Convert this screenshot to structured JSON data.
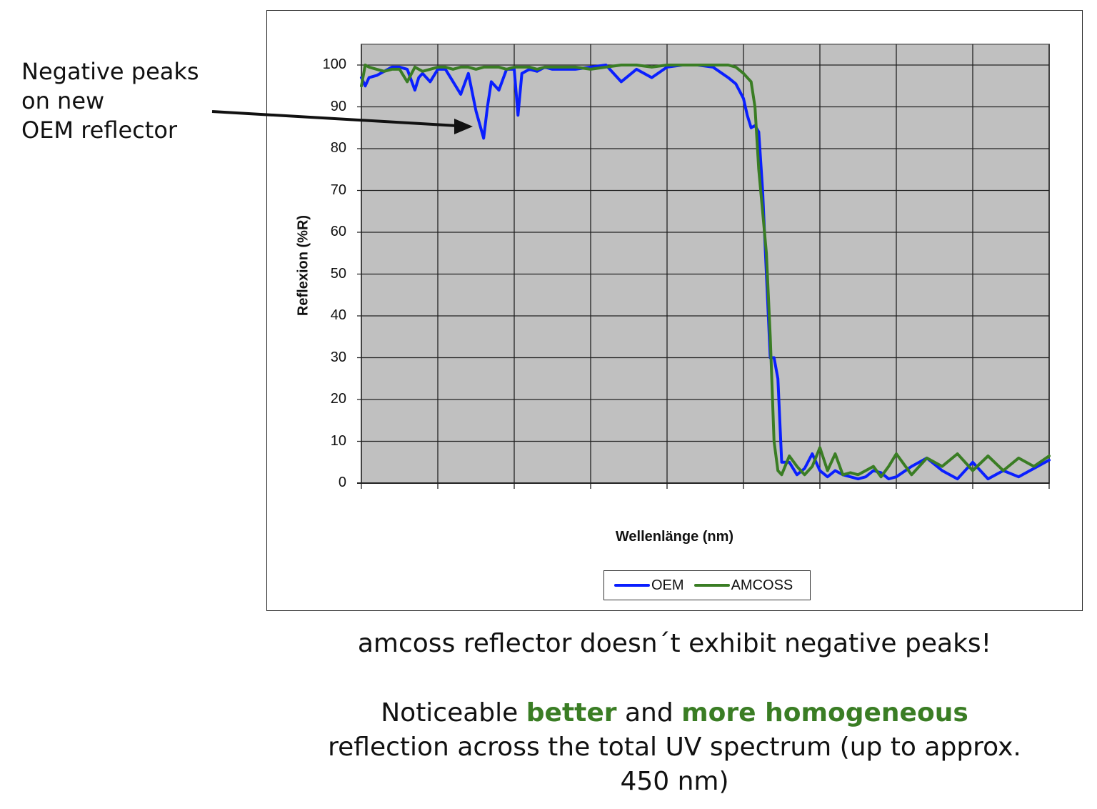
{
  "annotation": {
    "lines": [
      "Negative peaks",
      "on new",
      "OEM reflector"
    ]
  },
  "captions": {
    "line1": "amcoss reflector doesn´t exhibit negative peaks!",
    "line2_pre": "Noticeable ",
    "line2_hl1": "better",
    "line2_mid": " and ",
    "line2_hl2": "more homogeneous",
    "line3": "reflection across the total UV spectrum (up to approx. 450 nm)"
  },
  "colors": {
    "oem": "#0a1fff",
    "amcoss": "#3a7d24",
    "plot_bg": "#c0c0c0",
    "grid": "#222222",
    "highlight": "#3a7d24"
  },
  "chart_data": {
    "type": "line",
    "title": "",
    "xlabel": "Wellenlänge (nm)",
    "ylabel": "Reflexion (%R)",
    "ylim": [
      0,
      100
    ],
    "yticks": [
      0,
      10,
      20,
      30,
      40,
      50,
      60,
      70,
      80,
      90,
      100
    ],
    "xlim": [
      0,
      9
    ],
    "x_grid_divisions": 9,
    "x_tick_labels": [],
    "grid": true,
    "legend_position": "bottom",
    "x": [
      0,
      0.05,
      0.1,
      0.2,
      0.3,
      0.4,
      0.5,
      0.6,
      0.7,
      0.75,
      0.8,
      0.9,
      1.0,
      1.1,
      1.2,
      1.3,
      1.4,
      1.5,
      1.6,
      1.65,
      1.7,
      1.8,
      1.9,
      2.0,
      2.05,
      2.1,
      2.2,
      2.3,
      2.4,
      2.5,
      2.6,
      2.8,
      3.0,
      3.2,
      3.4,
      3.6,
      3.8,
      4.0,
      4.2,
      4.4,
      4.6,
      4.8,
      4.9,
      5.0,
      5.05,
      5.1,
      5.15,
      5.2,
      5.25,
      5.3,
      5.35,
      5.4,
      5.45,
      5.5,
      5.6,
      5.7,
      5.8,
      5.9,
      6.0,
      6.1,
      6.2,
      6.3,
      6.4,
      6.5,
      6.6,
      6.7,
      6.8,
      6.9,
      7.0,
      7.2,
      7.4,
      7.6,
      7.8,
      8.0,
      8.2,
      8.4,
      8.6,
      8.8,
      9.0
    ],
    "series": [
      {
        "name": "OEM",
        "values": [
          97,
          95,
          97,
          97.5,
          98.5,
          99.5,
          99.5,
          99,
          94,
          97,
          98,
          96,
          99,
          99,
          96,
          93,
          98,
          89,
          82.5,
          90,
          96,
          94,
          99,
          99,
          88,
          98,
          99,
          98.5,
          99.5,
          99,
          99,
          99,
          99.5,
          100,
          96,
          99,
          97,
          99.5,
          100,
          100,
          99.5,
          97,
          95.5,
          92,
          88,
          85,
          85.5,
          84,
          70,
          50,
          30,
          30,
          25,
          5,
          5,
          2,
          3.5,
          7,
          3,
          1.5,
          3,
          2,
          1.5,
          1,
          1.5,
          3,
          2.5,
          1,
          1.5,
          4,
          6,
          3,
          1,
          5,
          1,
          3,
          1.5,
          3.5,
          5.5
        ],
        "color": "#0a1fff"
      },
      {
        "name": "AMCOSS",
        "values": [
          95,
          100,
          99.5,
          99,
          98.5,
          99,
          99,
          96,
          99.5,
          99,
          98.5,
          99,
          99.5,
          99.5,
          99,
          99.5,
          99.5,
          99,
          99.5,
          99.5,
          99.5,
          99.5,
          99,
          99.5,
          99.5,
          99.5,
          99.5,
          99,
          99.5,
          99.5,
          99.5,
          99.5,
          99,
          99.5,
          100,
          100,
          99.5,
          100,
          100,
          100,
          100,
          100,
          99.5,
          98,
          97,
          96,
          90,
          75,
          65,
          55,
          35,
          10,
          3,
          2,
          6.5,
          4,
          2,
          4,
          8.5,
          3,
          7,
          2,
          2.5,
          2,
          3,
          4,
          1.5,
          4,
          7,
          2,
          6,
          4,
          7,
          3,
          6.5,
          3,
          6,
          4,
          6.5
        ],
        "color": "#3a7d24"
      }
    ]
  }
}
